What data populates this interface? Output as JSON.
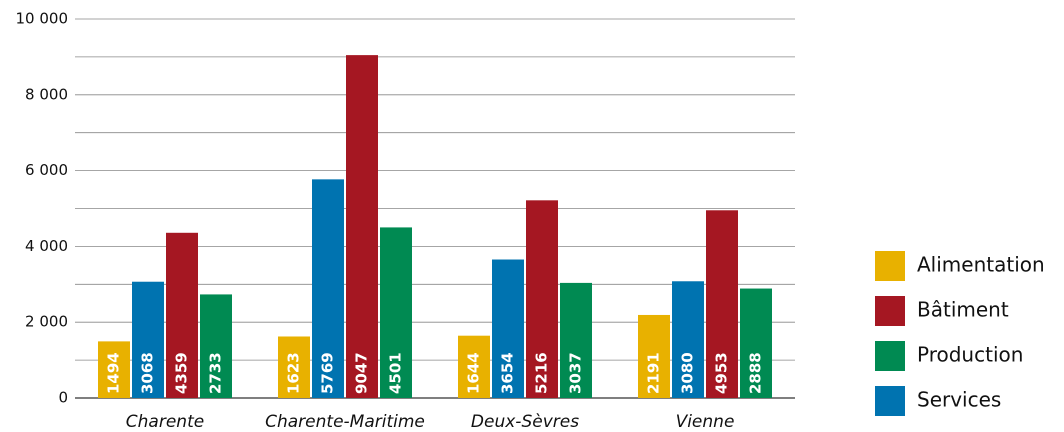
{
  "chart_data": {
    "type": "bar",
    "categories": [
      "Charente",
      "Charente-Maritime",
      "Deux-Sèvres",
      "Vienne"
    ],
    "series": [
      {
        "name": "Alimentation",
        "color": "#e8b100",
        "values": [
          1494,
          1623,
          1644,
          2191
        ]
      },
      {
        "name": "Bâtiment",
        "color": "#a51722",
        "values": [
          4359,
          9047,
          5216,
          4953
        ]
      },
      {
        "name": "Production",
        "color": "#008a52",
        "values": [
          2733,
          4501,
          3037,
          2888
        ]
      },
      {
        "name": "Services",
        "color": "#0073b0",
        "values": [
          3068,
          5769,
          3654,
          3080
        ]
      }
    ],
    "ylim": [
      0,
      10000
    ],
    "yticks": [
      0,
      {
        "value": 2000,
        "label": "2 000"
      },
      {
        "value": 4000,
        "label": "4 000"
      },
      {
        "value": 6000,
        "label": "6 000"
      },
      {
        "value": 8000,
        "label": "8 000"
      },
      {
        "value": 10000,
        "label": "10 000"
      }
    ],
    "minor_yticks": [
      1000,
      3000,
      5000,
      7000,
      9000
    ],
    "grid": true,
    "legend": "right"
  }
}
